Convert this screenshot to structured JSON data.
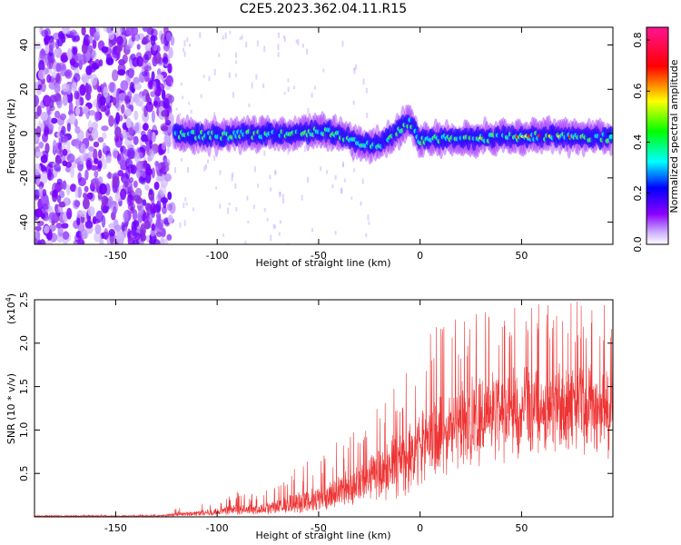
{
  "title": "C2E5.2023.362.04.11.R15",
  "chart_data": [
    {
      "type": "heatmap",
      "name": "spectrogram",
      "xlabel": "Height of straight line (km)",
      "ylabel": "Frequency (Hz)",
      "xlim": [
        -190,
        95
      ],
      "ylim": [
        -50,
        48
      ],
      "xticks": [
        -150,
        -100,
        -50,
        0,
        50
      ],
      "yticks": [
        -40,
        -20,
        0,
        20,
        40
      ],
      "colorbar": {
        "label": "Normalized spectral amplitude",
        "range": [
          0.0,
          0.85
        ],
        "ticks": [
          0.0,
          0.2,
          0.4,
          0.6,
          0.8
        ],
        "colors": [
          "#ffffff",
          "#8b00ff",
          "#0000ff",
          "#00ffff",
          "#00ff00",
          "#ffff00",
          "#ff0000",
          "#ff1493"
        ]
      },
      "signal_band": {
        "center_freq_hz": [
          {
            "x": -130,
            "f": 0
          },
          {
            "x": -100,
            "f": -1
          },
          {
            "x": -70,
            "f": 0
          },
          {
            "x": -45,
            "f": 1
          },
          {
            "x": -30,
            "f": -4
          },
          {
            "x": -20,
            "f": -5
          },
          {
            "x": -10,
            "f": 2
          },
          {
            "x": -5,
            "f": 5
          },
          {
            "x": 0,
            "f": -3
          },
          {
            "x": 10,
            "f": -2
          },
          {
            "x": 30,
            "f": -2
          },
          {
            "x": 60,
            "f": -1
          },
          {
            "x": 95,
            "f": -2
          }
        ],
        "noise_region_x": [
          -190,
          -125
        ]
      }
    },
    {
      "type": "line",
      "name": "snr",
      "xlabel": "Height of straight line (km)",
      "ylabel": "SNR (10 * v/v)",
      "y_multiplier_label": "(x10",
      "y_multiplier_exp": "4",
      "y_multiplier_close": ")",
      "xlim": [
        -190,
        95
      ],
      "ylim": [
        0,
        2.5
      ],
      "xticks": [
        -150,
        -100,
        -50,
        0,
        50
      ],
      "yticks": [
        0.5,
        1.0,
        1.5,
        2.0,
        2.5
      ],
      "color": "#ee3333",
      "envelope": {
        "x": [
          -190,
          -130,
          -120,
          -110,
          -100,
          -90,
          -80,
          -70,
          -60,
          -50,
          -40,
          -30,
          -20,
          -10,
          0,
          10,
          20,
          30,
          40,
          50,
          60,
          70,
          80,
          90,
          95
        ],
        "base": [
          0.0,
          0.0,
          0.01,
          0.02,
          0.03,
          0.03,
          0.04,
          0.05,
          0.06,
          0.1,
          0.18,
          0.25,
          0.33,
          0.42,
          0.6,
          0.8,
          1.0,
          1.1,
          1.2,
          1.25,
          1.28,
          1.3,
          1.3,
          1.3,
          1.3
        ],
        "peak": [
          0.02,
          0.03,
          0.1,
          0.14,
          0.2,
          0.3,
          0.25,
          0.4,
          0.6,
          0.7,
          0.9,
          1.1,
          1.5,
          1.7,
          2.0,
          2.25,
          2.35,
          2.4,
          2.45,
          2.45,
          2.45,
          2.45,
          2.5,
          2.5,
          2.2
        ]
      }
    }
  ]
}
